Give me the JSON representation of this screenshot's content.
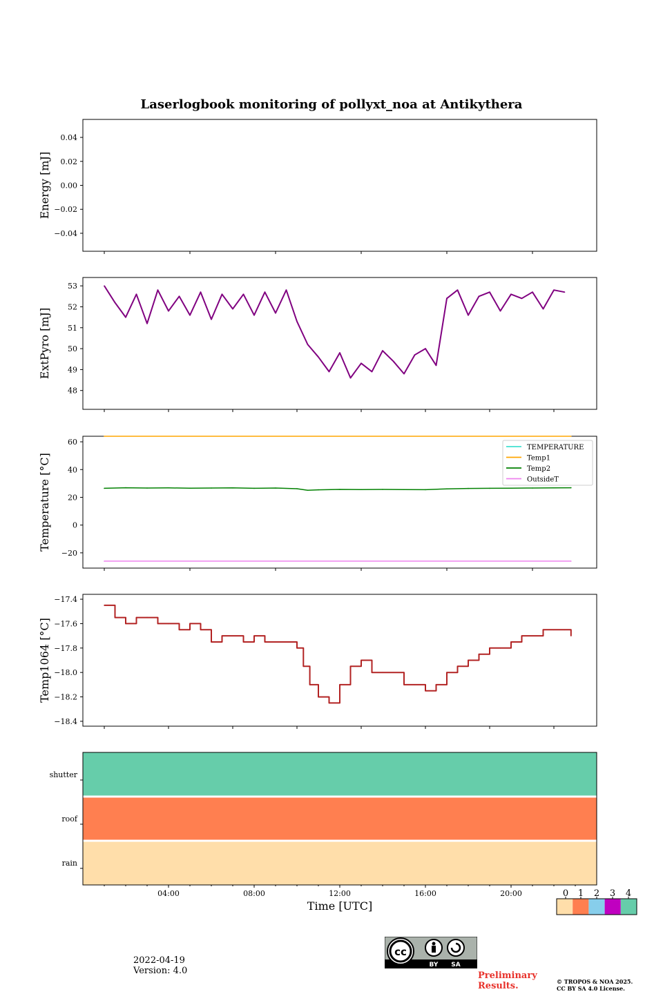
{
  "title": "Laserlogbook monitoring of pollyxt_noa at Antikythera",
  "footer": {
    "date": "2022-04-19",
    "version": "Version: 4.0",
    "preliminary_line1": "Preliminary",
    "preliminary_line2": "Results.",
    "copyright_line1": "© TROPOS & NOA 2025.",
    "copyright_line2": "CC BY SA 4.0 License.",
    "cc_label_by": "BY",
    "cc_label_sa": "SA"
  },
  "colors": {
    "extpyro": "#800080",
    "temperature": "#40e0d0",
    "temp1": "#ffa500",
    "temp2": "#008000",
    "outsideT": "#ee82ee",
    "temp1064": "#b22222",
    "status_0": "#ffdeaa",
    "status_1": "#ff7f50",
    "status_2": "#87ceeb",
    "status_3": "#c000c0",
    "status_4": "#66cdaa"
  },
  "chart_data": [
    {
      "type": "line",
      "ylabel": "Energy [mJ]",
      "ylim": [
        -0.055,
        0.055
      ],
      "yticks": [
        0.04,
        0.02,
        0.0,
        -0.02,
        -0.04
      ],
      "ytick_labels": [
        "0.04",
        "0.02",
        "0.00",
        "−0.02",
        "−0.04"
      ],
      "series": []
    },
    {
      "type": "line",
      "ylabel": "ExtPyro [mJ]",
      "ylim": [
        47.1,
        53.4
      ],
      "yticks": [
        53,
        52,
        51,
        50,
        49,
        48
      ],
      "ytick_labels": [
        "53",
        "52",
        "51",
        "50",
        "49",
        "48"
      ],
      "series": [
        {
          "x": [
            1.0,
            1.5,
            2.0,
            2.5,
            3.0,
            3.5,
            4.0,
            4.5,
            5.0,
            5.5,
            6.0,
            6.5,
            7.0,
            7.5,
            8.0,
            8.5,
            9.0,
            9.5,
            10.0,
            10.5,
            11.0,
            11.5,
            12.0,
            12.5,
            13.0,
            13.5,
            14.0,
            14.5,
            15.0,
            15.5,
            16.0,
            16.5,
            17.0,
            17.5,
            18.0,
            18.5,
            19.0,
            19.5,
            20.0,
            20.5,
            21.0,
            21.5,
            22.0,
            22.5
          ],
          "y": [
            53.0,
            52.2,
            51.5,
            52.6,
            51.2,
            52.8,
            51.8,
            52.5,
            51.6,
            52.7,
            51.4,
            52.6,
            51.9,
            52.6,
            51.6,
            52.7,
            51.7,
            52.8,
            51.3,
            50.2,
            49.6,
            48.9,
            49.8,
            48.6,
            49.3,
            48.9,
            49.9,
            49.4,
            48.8,
            49.7,
            50.0,
            49.2,
            52.4,
            52.8,
            51.6,
            52.5,
            52.7,
            51.8,
            52.6,
            52.4,
            52.7,
            51.9,
            52.8,
            52.7
          ]
        }
      ]
    },
    {
      "type": "line",
      "ylabel": "Temperature [°C]",
      "ylim": [
        -31,
        64
      ],
      "yticks": [
        60,
        40,
        20,
        0,
        -20
      ],
      "ytick_labels": [
        "60",
        "40",
        "20",
        "0",
        "−20"
      ],
      "legend_position": "top-right",
      "series": [
        {
          "name": "TEMPERATURE",
          "x": [],
          "y": []
        },
        {
          "name": "Temp1",
          "x": [
            1.0,
            22.8
          ],
          "y": [
            64,
            64
          ]
        },
        {
          "name": "Temp2",
          "x": [
            1.0,
            2.0,
            3.0,
            4.0,
            5.0,
            6.0,
            7.0,
            8.0,
            9.0,
            10.0,
            10.5,
            11.0,
            12.0,
            13.0,
            14.0,
            15.0,
            16.0,
            17.0,
            18.0,
            19.0,
            20.0,
            21.0,
            22.0,
            22.8
          ],
          "y": [
            26.5,
            26.9,
            26.7,
            26.8,
            26.6,
            26.7,
            26.8,
            26.5,
            26.7,
            26.2,
            25.1,
            25.4,
            25.7,
            25.6,
            25.7,
            25.6,
            25.5,
            26.1,
            26.4,
            26.5,
            26.6,
            26.7,
            26.8,
            26.9
          ]
        },
        {
          "name": "OutsideT",
          "x": [
            1.0,
            22.8
          ],
          "y": [
            -26,
            -26
          ]
        }
      ]
    },
    {
      "type": "line",
      "ylabel": "Temp1064 [°C]",
      "ylim": [
        -18.44,
        -17.36
      ],
      "yticks": [
        -17.4,
        -17.6,
        -17.8,
        -18.0,
        -18.2,
        -18.4
      ],
      "ytick_labels": [
        "−17.4",
        "−17.6",
        "−17.8",
        "−18.0",
        "−18.2",
        "−18.4"
      ],
      "series": [
        {
          "x": [
            1.0,
            1.5,
            2.0,
            2.5,
            3.0,
            3.5,
            4.0,
            4.5,
            5.0,
            5.5,
            6.0,
            6.5,
            7.0,
            7.5,
            8.0,
            8.5,
            9.0,
            9.5,
            10.0,
            10.3,
            10.6,
            11.0,
            11.5,
            12.0,
            12.5,
            13.0,
            13.5,
            14.0,
            14.5,
            15.0,
            15.5,
            16.0,
            16.5,
            17.0,
            17.5,
            18.0,
            18.5,
            19.0,
            19.5,
            20.0,
            20.5,
            21.0,
            21.5,
            22.0,
            22.5,
            22.8
          ],
          "y": [
            -17.45,
            -17.55,
            -17.6,
            -17.55,
            -17.55,
            -17.6,
            -17.6,
            -17.65,
            -17.6,
            -17.65,
            -17.75,
            -17.7,
            -17.7,
            -17.75,
            -17.7,
            -17.75,
            -17.75,
            -17.75,
            -17.8,
            -17.95,
            -18.1,
            -18.2,
            -18.25,
            -18.1,
            -17.95,
            -17.9,
            -18.0,
            -18.0,
            -18.0,
            -18.1,
            -18.1,
            -18.15,
            -18.1,
            -18.0,
            -17.95,
            -17.9,
            -17.85,
            -17.8,
            -17.8,
            -17.75,
            -17.7,
            -17.7,
            -17.65,
            -17.65,
            -17.65,
            -17.7
          ]
        }
      ]
    },
    {
      "type": "heatmap",
      "xlabel": "Time [UTC]",
      "xlim": [
        0,
        24
      ],
      "xticks": [
        4,
        8,
        12,
        16,
        20
      ],
      "xtick_labels": [
        "04:00",
        "08:00",
        "12:00",
        "16:00",
        "20:00"
      ],
      "rows": [
        "shutter",
        "roof",
        "rain"
      ],
      "values": [
        4,
        1,
        0
      ],
      "colorbar": {
        "ticks": [
          0,
          1,
          2,
          3,
          4
        ],
        "tick_labels": [
          "0",
          "1",
          "2",
          "3",
          "4"
        ]
      }
    }
  ]
}
